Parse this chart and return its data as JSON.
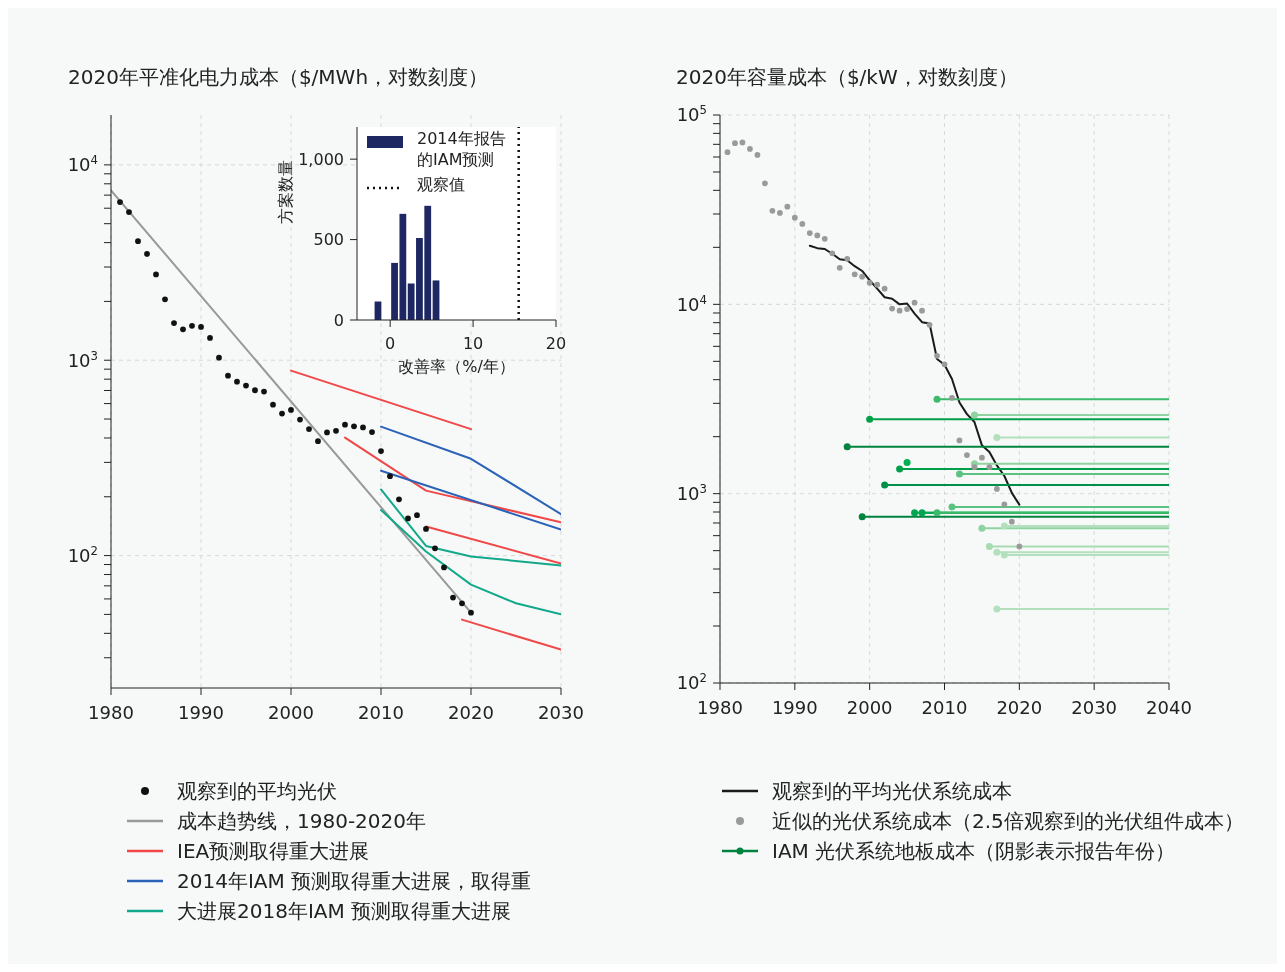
{
  "chart_data": [
    {
      "type": "line",
      "title": "2020年平准化电力成本（$/MWh，对数刻度）",
      "log": "y",
      "grid": true,
      "legend": "bottom",
      "xlim": [
        1980,
        2030
      ],
      "xticks": [
        1980,
        1990,
        2000,
        2010,
        2020,
        2030
      ],
      "ylim": [
        21,
        18000
      ],
      "yticks": [
        {
          "value": 30,
          "label": null
        },
        {
          "value": 40,
          "label": null
        },
        {
          "value": 50,
          "label": null
        },
        {
          "value": 60,
          "label": null
        },
        {
          "value": 70,
          "label": null
        },
        {
          "value": 80,
          "label": null
        },
        {
          "value": 90,
          "label": null
        },
        {
          "value": 100,
          "label": "10$^{2}$"
        },
        {
          "value": 200,
          "label": null
        },
        {
          "value": 300,
          "label": null
        },
        {
          "value": 400,
          "label": null
        },
        {
          "value": 500,
          "label": null
        },
        {
          "value": 600,
          "label": null
        },
        {
          "value": 700,
          "label": null
        },
        {
          "value": 800,
          "label": null
        },
        {
          "value": 900,
          "label": null
        },
        {
          "value": 1000,
          "label": "10$^{3}$"
        },
        {
          "value": 2000,
          "label": null
        },
        {
          "value": 3000,
          "label": null
        },
        {
          "value": 4000,
          "label": null
        },
        {
          "value": 5000,
          "label": null
        },
        {
          "value": 6000,
          "label": null
        },
        {
          "value": 7000,
          "label": null
        },
        {
          "value": 8000,
          "label": null
        },
        {
          "value": 9000,
          "label": null
        },
        {
          "value": 10000,
          "label": "10$^{4}$"
        }
      ],
      "series": [
        {
          "type": "scatter",
          "name": "观察到的平均光伏",
          "color": "#111111",
          "marker": "circle",
          "x": [
            1981,
            1982,
            1983,
            1984,
            1985,
            1986,
            1987,
            1988,
            1989,
            1990,
            1991,
            1992,
            1993,
            1994,
            1995,
            1996,
            1997,
            1998,
            1999,
            2000,
            2001,
            2002,
            2003,
            2004,
            2005,
            2006,
            2007,
            2008,
            2009,
            2010,
            2011,
            2012,
            2013,
            2014,
            2015,
            2016,
            2017,
            2018,
            2019,
            2020
          ],
          "values": [
            6450,
            5730,
            4070,
            3500,
            2750,
            2050,
            1550,
            1440,
            1500,
            1480,
            1300,
            1030,
            833,
            776,
            742,
            702,
            691,
            592,
            533,
            557,
            497,
            444,
            385,
            427,
            435,
            468,
            459,
            453,
            429,
            343,
            255,
            194,
            155,
            161,
            137,
            109,
            87,
            61,
            57,
            51
          ]
        },
        {
          "type": "line",
          "name": "成本趋势线，1980-2020年",
          "color": "#999999",
          "x": [
            1980,
            2020
          ],
          "values": [
            7400,
            51
          ]
        },
        {
          "type": "line",
          "name": "IEA预测取得重大进展",
          "color": "#f04848",
          "x": [
            2000,
            2020
          ],
          "values": [
            885,
            444
          ]
        },
        {
          "type": "line",
          "color": "#f04848",
          "x": [
            2006,
            2015,
            2030
          ],
          "values": [
            402,
            215,
            148
          ]
        },
        {
          "type": "line",
          "color": "#f04848",
          "x": [
            2015,
            2030
          ],
          "values": [
            141,
            91
          ]
        },
        {
          "type": "line",
          "color": "#f04848",
          "x": [
            2019,
            2030
          ],
          "values": [
            47,
            33
          ]
        },
        {
          "type": "line",
          "name": "2014年IAM 预测取得重大进展，取得重",
          "color": "#2a62b8",
          "x": [
            2010,
            2020,
            2030
          ],
          "values": [
            457,
            313,
            163
          ]
        },
        {
          "type": "line",
          "color": "#2a62b8",
          "x": [
            2010,
            2030
          ],
          "values": [
            272,
            136
          ]
        },
        {
          "type": "line",
          "name": "大进展2018年IAM 预测取得重大进展",
          "color": "#12a88a",
          "x": [
            2010,
            2015,
            2020,
            2030
          ],
          "values": [
            218,
            112,
            99,
            89
          ]
        },
        {
          "type": "line",
          "color": "#12a88a",
          "x": [
            2010,
            2015,
            2020,
            2025,
            2030
          ],
          "values": [
            171,
            105,
            71,
            57,
            50
          ]
        }
      ]
    },
    {
      "type": "histogram",
      "xlabel": "改善率（%/年）",
      "ylabel": "方案数量",
      "legend": "top left",
      "xlim": [
        -4,
        20
      ],
      "xticks": [
        0,
        10,
        20
      ],
      "ylim": [
        0,
        1200
      ],
      "yticks": [
        0,
        500,
        {
          "value": 1000,
          "label": "1,000"
        }
      ],
      "bins": [
        -2,
        -1,
        0,
        1,
        2,
        3,
        4,
        5,
        6
      ],
      "series": [
        {
          "name": "2014年报告的IAM预测",
          "color": "#1e2761",
          "values": [
            115,
            0,
            355,
            660,
            227,
            510,
            710,
            246
          ]
        }
      ],
      "ref_lines": [
        {
          "axis": "x",
          "value": 15.5,
          "label": "观察值",
          "color": "#111111",
          "line_style": "dotted"
        }
      ]
    },
    {
      "type": "line",
      "title": "2020年容量成本（$/kW，对数刻度）",
      "log": "y",
      "grid": true,
      "legend": "bottom",
      "xlim": [
        1980,
        2040
      ],
      "xticks": [
        1980,
        1990,
        2000,
        2010,
        2020,
        2030,
        2040
      ],
      "ylim": [
        100,
        100000
      ],
      "yticks": [
        {
          "value": 100,
          "label": "10$^{2}$"
        },
        {
          "value": 200,
          "label": null
        },
        {
          "value": 300,
          "label": null
        },
        {
          "value": 400,
          "label": null
        },
        {
          "value": 500,
          "label": null
        },
        {
          "value": 600,
          "label": null
        },
        {
          "value": 700,
          "label": null
        },
        {
          "value": 800,
          "label": null
        },
        {
          "value": 900,
          "label": null
        },
        {
          "value": 1000,
          "label": "10$^{3}$"
        },
        {
          "value": 2000,
          "label": null
        },
        {
          "value": 3000,
          "label": null
        },
        {
          "value": 4000,
          "label": null
        },
        {
          "value": 5000,
          "label": null
        },
        {
          "value": 6000,
          "label": null
        },
        {
          "value": 7000,
          "label": null
        },
        {
          "value": 8000,
          "label": null
        },
        {
          "value": 9000,
          "label": null
        },
        {
          "value": 10000,
          "label": "10$^{4}$"
        },
        {
          "value": 20000,
          "label": null
        },
        {
          "value": 30000,
          "label": null
        },
        {
          "value": 40000,
          "label": null
        },
        {
          "value": 50000,
          "label": null
        },
        {
          "value": 60000,
          "label": null
        },
        {
          "value": 70000,
          "label": null
        },
        {
          "value": 80000,
          "label": null
        },
        {
          "value": 90000,
          "label": null
        },
        {
          "value": 100000,
          "label": "10$^{5}$"
        }
      ],
      "series": [
        {
          "type": "line",
          "name": "观察到的平均光伏系统成本",
          "color": "#1a1a1a",
          "x": [
            1992,
            1993,
            1994,
            1995,
            1996,
            1997,
            1998,
            1999,
            2000,
            2001,
            2002,
            2003,
            2004,
            2005,
            2006,
            2007,
            2008,
            2009,
            2010,
            2011,
            2012,
            2013,
            2014,
            2015,
            2016,
            2017,
            2018,
            2019,
            2020
          ],
          "values": [
            20400,
            19800,
            19600,
            18500,
            17300,
            17100,
            15900,
            15000,
            13400,
            12100,
            10900,
            10700,
            10000,
            10100,
            8930,
            8050,
            7920,
            5140,
            4800,
            4030,
            3030,
            2630,
            2390,
            1800,
            1660,
            1410,
            1240,
            1010,
            875
          ]
        },
        {
          "type": "scatter",
          "name": "近似的光伏系统成本（2.5倍观察到的光伏组件成本）",
          "color": "#9a9a9a",
          "marker": "circle",
          "x": [
            1981,
            1982,
            1983,
            1984,
            1985,
            1986,
            1987,
            1988,
            1989,
            1990,
            1991,
            1992,
            1993,
            1994,
            1995,
            1996,
            1997,
            1998,
            1999,
            2000,
            2001,
            2002,
            2003,
            2004,
            2005,
            2006,
            2007,
            2008,
            2009,
            2010,
            2011,
            2012,
            2013,
            2014,
            2015,
            2016,
            2017,
            2018,
            2019,
            2020
          ],
          "values": [
            63600,
            71000,
            71600,
            66200,
            61500,
            43600,
            31200,
            30400,
            32800,
            28700,
            26600,
            23800,
            23100,
            22200,
            18600,
            15600,
            17400,
            14400,
            14000,
            13000,
            12700,
            12100,
            9500,
            9250,
            9440,
            10200,
            9250,
            7800,
            5350,
            4820,
            3210,
            1910,
            1600,
            1380,
            1550,
            1380,
            1060,
            878,
            711,
            526
          ]
        },
        {
          "type": "line",
          "name": "IAM 光伏系统地板成本（阴影表示报告年份）",
          "color": "#00833f",
          "marker": "circle",
          "x": [
            1997,
            2040
          ],
          "values": [
            1770,
            1770
          ]
        },
        {
          "type": "line",
          "color": "#3dbb6b",
          "marker": "circle",
          "x": [
            2009,
            2040
          ],
          "values": [
            3150,
            3150
          ]
        },
        {
          "type": "line",
          "color": "#8fd3a0",
          "marker": "circle",
          "x": [
            2014,
            2040
          ],
          "values": [
            2600,
            2600
          ]
        },
        {
          "type": "line",
          "color": "#00a04a",
          "marker": "circle",
          "x": [
            2000,
            2040
          ],
          "values": [
            2470,
            2470
          ]
        },
        {
          "type": "line",
          "color": "#b3e0bd",
          "marker": "circle",
          "x": [
            2017,
            2040
          ],
          "values": [
            1980,
            1980
          ]
        },
        {
          "type": "line",
          "color": "#00b050",
          "marker": "circle",
          "x": [
            2005
          ],
          "values": [
            1460
          ]
        },
        {
          "type": "line",
          "color": "#8fd3a0",
          "marker": "circle",
          "x": [
            2014,
            2040
          ],
          "values": [
            1440,
            1440
          ]
        },
        {
          "type": "line",
          "color": "#00a04a",
          "marker": "circle",
          "x": [
            2004,
            2040
          ],
          "values": [
            1350,
            1350
          ]
        },
        {
          "type": "line",
          "color": "#5cc281",
          "marker": "circle",
          "x": [
            2012,
            2040
          ],
          "values": [
            1270,
            1270
          ]
        },
        {
          "type": "line",
          "color": "#00904a",
          "marker": "circle",
          "x": [
            2002,
            2040
          ],
          "values": [
            1110,
            1110
          ]
        },
        {
          "type": "line",
          "color": "#5cc281",
          "marker": "circle",
          "x": [
            2011,
            2040
          ],
          "values": [
            851,
            851
          ]
        },
        {
          "type": "line",
          "color": "#00a651",
          "marker": "circle",
          "x": [
            2006,
            2040
          ],
          "values": [
            793,
            793
          ]
        },
        {
          "type": "line",
          "color": "#00a651",
          "marker": "circle",
          "x": [
            2007,
            2040
          ],
          "values": [
            793,
            793
          ]
        },
        {
          "type": "line",
          "color": "#3dbb6b",
          "marker": "circle",
          "x": [
            2009,
            2040
          ],
          "values": [
            793,
            793
          ]
        },
        {
          "type": "line",
          "color": "#00833f",
          "marker": "circle",
          "x": [
            1999,
            2040
          ],
          "values": [
            755,
            755
          ]
        },
        {
          "type": "line",
          "color": "#b3e0bd",
          "marker": "circle",
          "x": [
            2018,
            2040
          ],
          "values": [
            675,
            675
          ]
        },
        {
          "type": "line",
          "color": "#8fd3a0",
          "marker": "circle",
          "x": [
            2015,
            2040
          ],
          "values": [
            656,
            656
          ]
        },
        {
          "type": "line",
          "color": "#a6dcb0",
          "marker": "circle",
          "x": [
            2016,
            2040
          ],
          "values": [
            526,
            526
          ]
        },
        {
          "type": "line",
          "color": "#b3e0bd",
          "marker": "circle",
          "x": [
            2017,
            2040
          ],
          "values": [
            491,
            491
          ]
        },
        {
          "type": "line",
          "color": "#b3e0bd",
          "marker": "circle",
          "x": [
            2018,
            2040
          ],
          "values": [
            474,
            474
          ]
        },
        {
          "type": "line",
          "color": "#b3e0bd",
          "marker": "circle",
          "x": [
            2017,
            2040
          ],
          "values": [
            246,
            246
          ]
        }
      ]
    }
  ]
}
